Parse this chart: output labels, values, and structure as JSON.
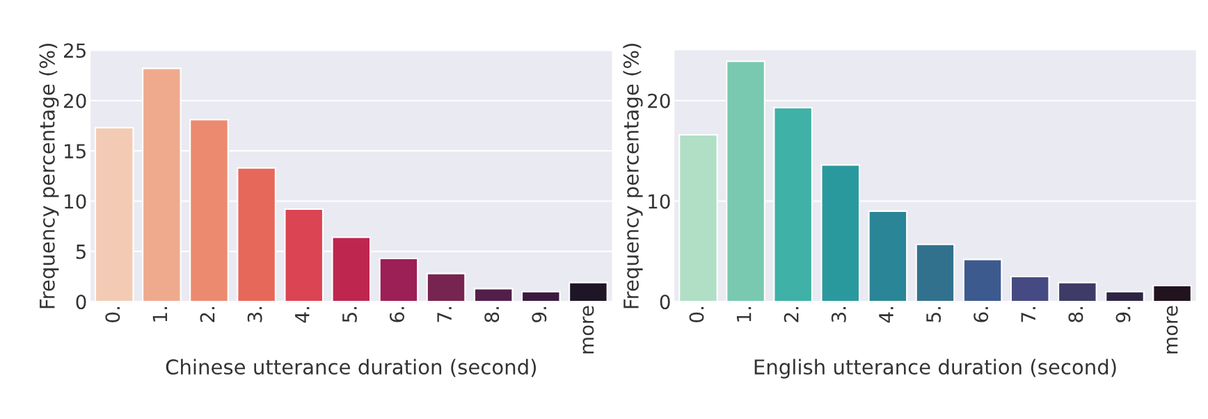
{
  "chart_data": [
    {
      "type": "bar",
      "xlabel": "Chinese utterance duration (second)",
      "ylabel": "Frequency percentage (%)",
      "categories": [
        "0.",
        "1.",
        "2.",
        "3.",
        "4.",
        "5.",
        "6.",
        "7.",
        "8.",
        "9.",
        "more"
      ],
      "values": [
        17.3,
        23.2,
        18.1,
        13.3,
        9.2,
        6.4,
        4.3,
        2.8,
        1.3,
        1.0,
        1.9
      ],
      "colors": [
        "#f3cbb4",
        "#efaa8e",
        "#eb8a6f",
        "#e6685a",
        "#db4452",
        "#be2650",
        "#9c1f56",
        "#782451",
        "#521f4b",
        "#3c1a3e",
        "#1e1527"
      ],
      "ylim": [
        0,
        25
      ],
      "yticks": [
        0,
        5,
        10,
        15,
        20,
        25
      ],
      "grid": "y"
    },
    {
      "type": "bar",
      "xlabel": "English utterance duration (second)",
      "ylabel": "Frequency percentage (%)",
      "categories": [
        "0.",
        "1.",
        "2.",
        "3.",
        "4.",
        "5.",
        "6.",
        "7.",
        "8.",
        "9.",
        "more"
      ],
      "values": [
        16.6,
        23.9,
        19.3,
        13.6,
        9.0,
        5.7,
        4.2,
        2.5,
        1.9,
        1.0,
        1.6
      ],
      "colors": [
        "#b0dfc6",
        "#78c9b0",
        "#3fb1a6",
        "#2a999d",
        "#2a8596",
        "#32718e",
        "#3c5a8e",
        "#464a82",
        "#3f3b67",
        "#2f2543",
        "#21141f"
      ],
      "ylim": [
        0,
        25
      ],
      "yticks": [
        0,
        10,
        20
      ],
      "grid": "y"
    }
  ]
}
